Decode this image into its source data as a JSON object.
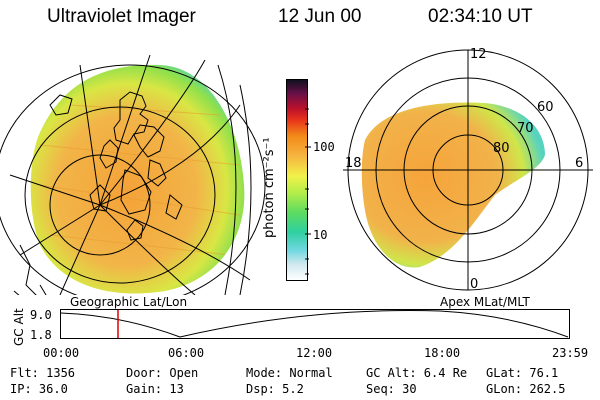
{
  "header": {
    "title": "Ultraviolet Imager",
    "date": "12 Jun 00",
    "time": "02:34:10 UT"
  },
  "colorbar": {
    "unit_label": "photon cm⁻²s⁻¹",
    "ticks": [
      "100",
      "10"
    ]
  },
  "left_map": {
    "label": "Geographic Lat/Lon"
  },
  "polar_plot": {
    "label": "Apex MLat/MLT",
    "hours": {
      "top": "12",
      "left": "18",
      "right": "6",
      "bottom": "0"
    },
    "latitudes": [
      "60",
      "70",
      "80"
    ]
  },
  "altitude_plot": {
    "ylabel": "GC Alt",
    "yticks": [
      "9.0",
      "1.8"
    ],
    "xticks": [
      "00:00",
      "06:00",
      "12:00",
      "18:00",
      "23:59"
    ],
    "marker_color": "#e00000"
  },
  "info": {
    "flt": "Flt: 1356",
    "ip": "IP: 36.0",
    "door": "Door: Open",
    "gain": "Gain: 13",
    "mode": "Mode: Normal",
    "dsp": "Dsp:    5.2",
    "gcalt": "GC Alt: 6.4 Re",
    "seq": "Seq: 30",
    "glat": "GLat:  76.1",
    "glon": "GLon: 262.5"
  }
}
